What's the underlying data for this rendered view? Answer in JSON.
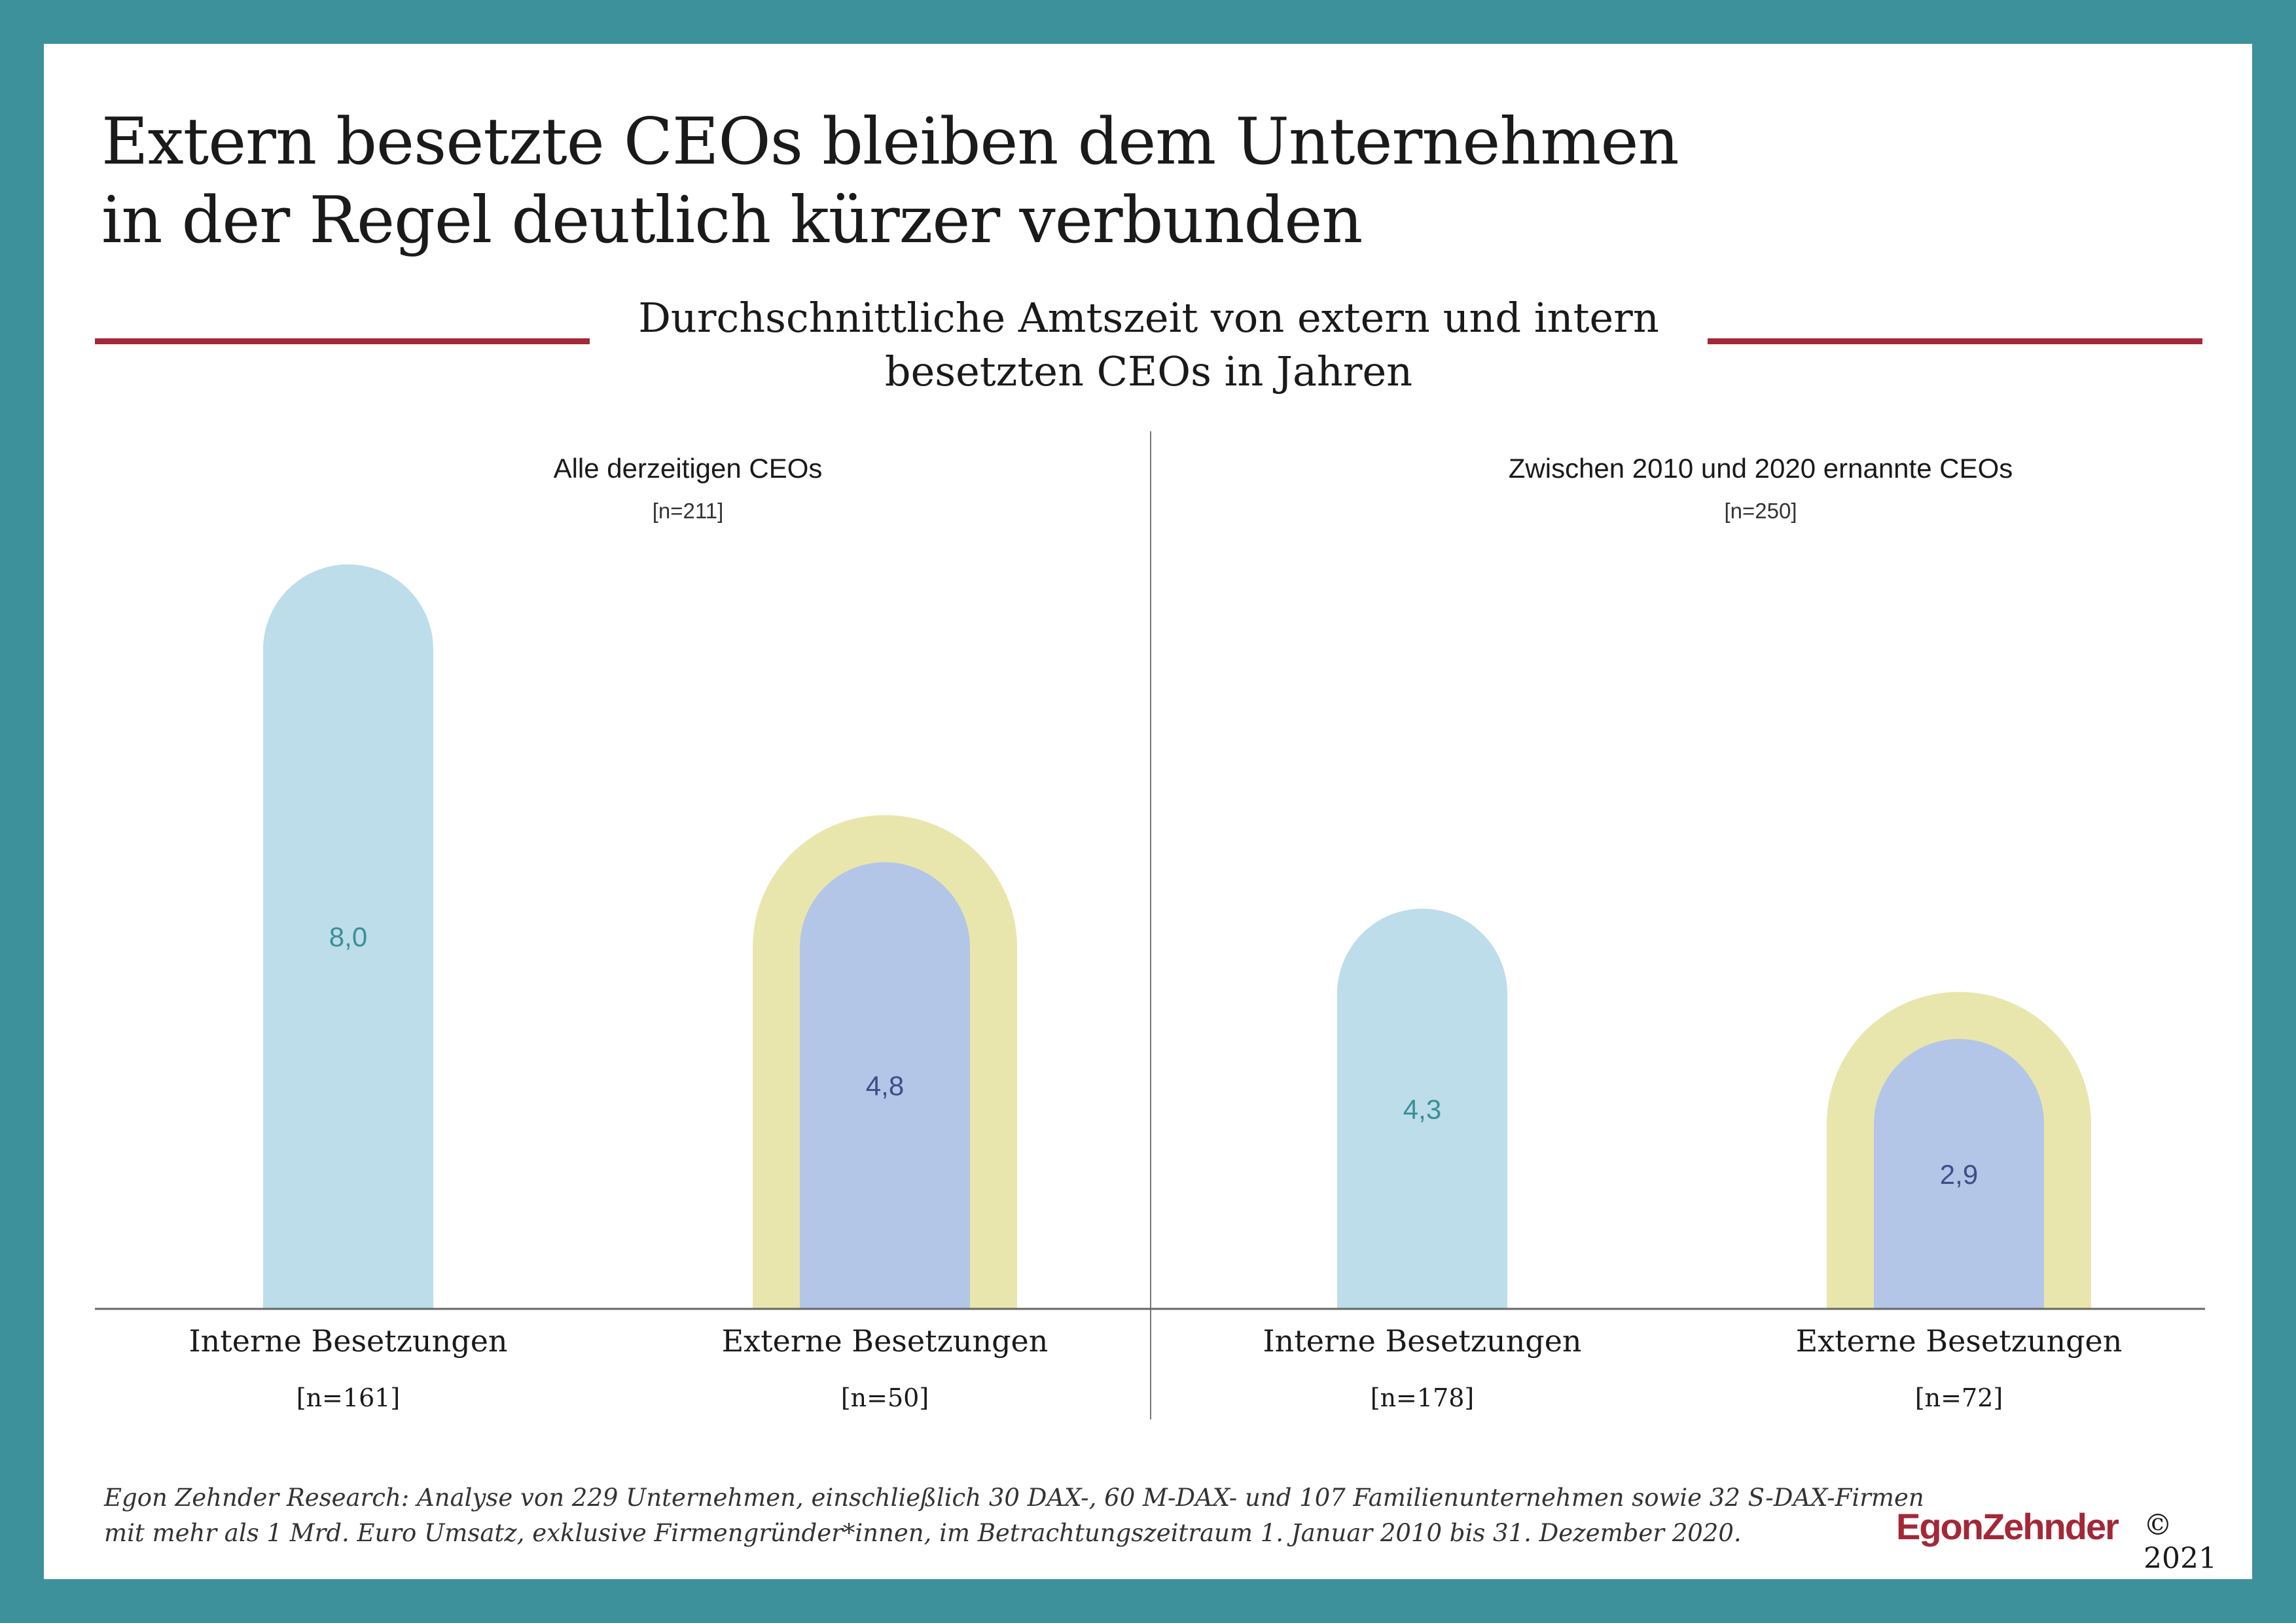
{
  "title": {
    "line1": "Extern besetzte CEOs bleiben dem Unternehmen",
    "line2": "in der Regel deutlich kürzer verbunden"
  },
  "subtitle": {
    "line1": "Durchschnittliche Amtszeit von extern und intern",
    "line2": "besetzten CEOs in Jahren"
  },
  "colors": {
    "frame": "#3c919b",
    "accent": "#a32838",
    "internal_bar": "#bcdde9",
    "external_bar": "#b3c6e8",
    "external_ring": "#e8e6ad",
    "internal_value_text": "#3a8f98",
    "external_value_text": "#3d4e86"
  },
  "panels": [
    {
      "title": "Alle derzeitigen CEOs",
      "n": "[n=211]"
    },
    {
      "title": "Zwischen 2010 und 2020 ernannte CEOs",
      "n": "[n=250]"
    }
  ],
  "chart_data": {
    "type": "bar",
    "ylabel": "",
    "panels": [
      {
        "title": "Alle derzeitigen CEOs",
        "n": "[n=211]",
        "categories": [
          "Interne Besetzungen",
          "Externe Besetzungen"
        ],
        "category_n": [
          "[n=161]",
          "[n=50]"
        ],
        "values": [
          8.0,
          4.8
        ],
        "value_labels": [
          "8,0",
          "4,8"
        ]
      },
      {
        "title": "Zwischen 2010 und 2020 ernannte CEOs",
        "n": "[n=250]",
        "categories": [
          "Interne Besetzungen",
          "Externe Besetzungen"
        ],
        "category_n": [
          "[n=178]",
          "[n=72]"
        ],
        "values": [
          4.3,
          2.9
        ],
        "value_labels": [
          "4,3",
          "2,9"
        ]
      }
    ],
    "external_ring": true,
    "grid": false
  },
  "footnote": {
    "line1": "Egon Zehnder Research: Analyse von 229 Unternehmen, einschließlich 30 DAX-, 60 M-DAX- und 107 Familienunternehmen sowie 32 S-DAX-Firmen",
    "line2": "mit mehr als 1 Mrd. Euro Umsatz, exklusive Firmengründer*innen, im Betrachtungszeitraum 1. Januar 2010 bis 31. Dezember 2020."
  },
  "logo": "EgonZehnder",
  "copyright": "© 2021"
}
